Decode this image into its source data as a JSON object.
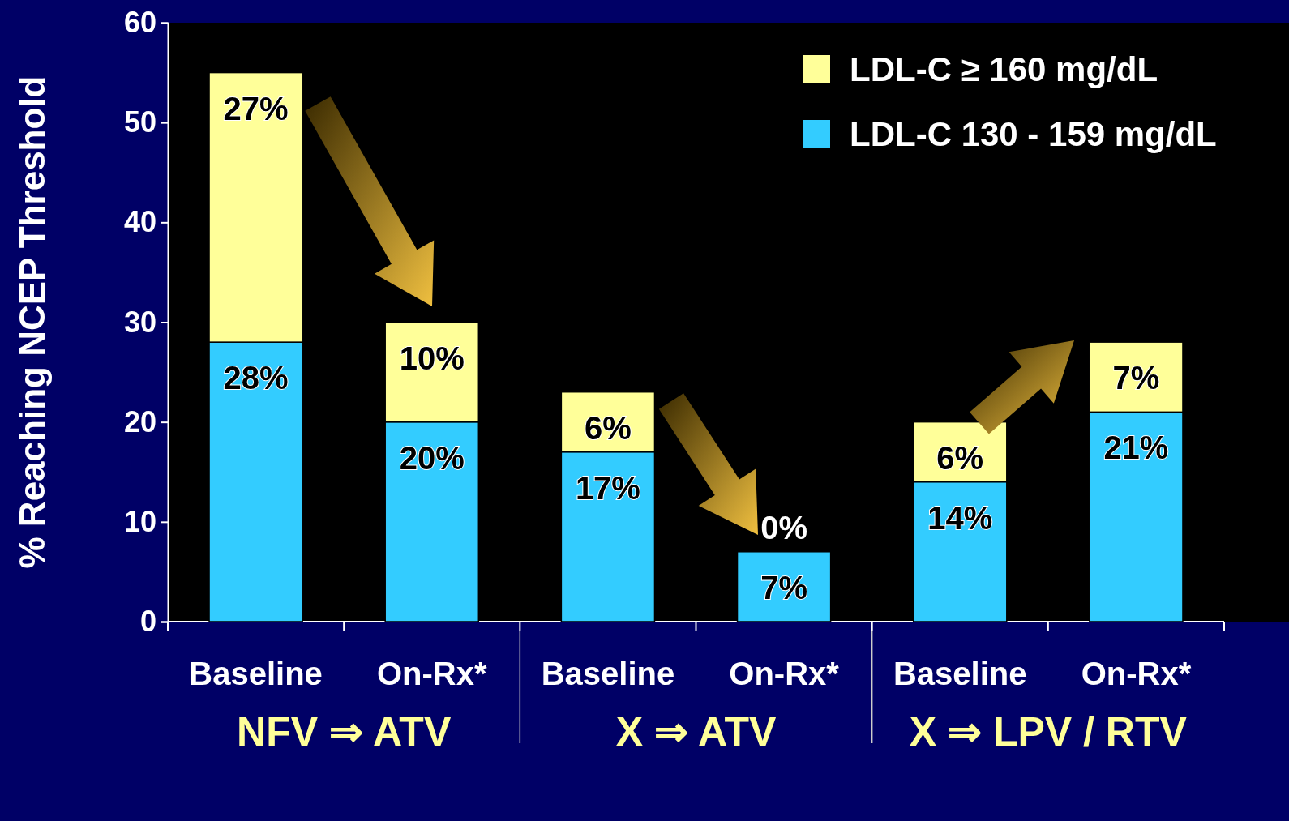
{
  "chart_data": {
    "type": "bar",
    "stacked": true,
    "ylabel": "% Reaching NCEP Threshold",
    "categories": [
      "Baseline",
      "On-Rx*",
      "Baseline",
      "On-Rx*",
      "Baseline",
      "On-Rx*"
    ],
    "series": [
      {
        "name": "LDL-C 130 - 159 mg/dL",
        "color": "#33ccff",
        "values": [
          28,
          20,
          17,
          7,
          14,
          21
        ],
        "value_labels": [
          "28%",
          "20%",
          "17%",
          "7%",
          "14%",
          "21%"
        ]
      },
      {
        "name": "LDL-C ≥ 160 mg/dL",
        "color": "#ffff99",
        "values": [
          27,
          10,
          6,
          0,
          6,
          7
        ],
        "value_labels": [
          "27%",
          "10%",
          "6%",
          "0%",
          "6%",
          "7%"
        ]
      }
    ],
    "ylim": [
      0,
      60
    ],
    "yticks": [
      0,
      10,
      20,
      30,
      40,
      50,
      60
    ],
    "grid": false,
    "legend": "top right",
    "annotations": [
      "NFV ⇒ ATV",
      "X ⇒ ATV",
      "X ⇒ LPV / RTV"
    ]
  }
}
